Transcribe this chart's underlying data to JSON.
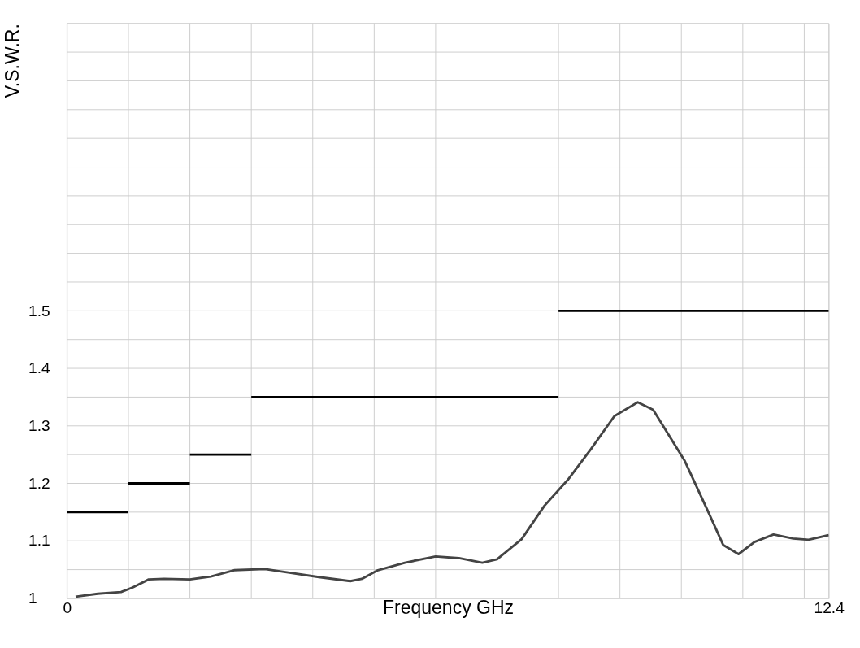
{
  "chart_data": {
    "type": "line",
    "xlabel": "Frequency GHz",
    "ylabel": "V.S.W.R.",
    "xlim": [
      0,
      12.4
    ],
    "ylim": [
      1,
      2
    ],
    "xticks": [
      0,
      {
        "value": 1,
        "label": null
      },
      {
        "value": 2,
        "label": null
      },
      {
        "value": 3,
        "label": null
      },
      {
        "value": 4,
        "label": null
      },
      {
        "value": 5,
        "label": null
      },
      {
        "value": 6,
        "label": null
      },
      {
        "value": 7,
        "label": null
      },
      {
        "value": 8,
        "label": null
      },
      {
        "value": 9,
        "label": null
      },
      {
        "value": 10,
        "label": null
      },
      {
        "value": 11,
        "label": null
      },
      {
        "value": 12,
        "label": null
      },
      12.4
    ],
    "yticks": [
      1,
      {
        "value": 1.05,
        "label": null
      },
      1.1,
      {
        "value": 1.15,
        "label": null
      },
      1.2,
      {
        "value": 1.25,
        "label": null
      },
      1.3,
      {
        "value": 1.35,
        "label": null
      },
      1.4,
      {
        "value": 1.45,
        "label": null
      },
      1.5,
      {
        "value": 1.55,
        "label": null
      },
      {
        "value": 1.6,
        "label": null
      },
      {
        "value": 1.65,
        "label": null
      },
      {
        "value": 1.7,
        "label": null
      },
      {
        "value": 1.75,
        "label": null
      },
      {
        "value": 1.8,
        "label": null
      },
      {
        "value": 1.85,
        "label": null
      },
      {
        "value": 1.9,
        "label": null
      },
      {
        "value": 1.95,
        "label": null
      },
      {
        "value": 2,
        "label": null
      }
    ],
    "grid": true,
    "line_style": "solid",
    "marker": "none",
    "series": [
      {
        "color": "#444444",
        "x": [
          0.14,
          0.5,
          0.88,
          1.07,
          1.33,
          1.58,
          2.0,
          2.34,
          2.72,
          3.22,
          3.6,
          4.1,
          4.61,
          4.8,
          5.06,
          5.5,
          6.0,
          6.38,
          6.76,
          7.0,
          7.4,
          7.77,
          8.15,
          8.53,
          8.91,
          9.29,
          9.54,
          10.05,
          10.43,
          10.68,
          10.93,
          11.19,
          11.5,
          11.82,
          12.07,
          12.4
        ],
        "values": [
          1.003,
          1.008,
          1.011,
          1.019,
          1.033,
          1.034,
          1.033,
          1.038,
          1.049,
          1.051,
          1.045,
          1.037,
          1.03,
          1.034,
          1.049,
          1.062,
          1.073,
          1.07,
          1.062,
          1.068,
          1.103,
          1.161,
          1.206,
          1.26,
          1.317,
          1.341,
          1.328,
          1.24,
          1.152,
          1.093,
          1.077,
          1.098,
          1.111,
          1.104,
          1.102,
          1.11
        ]
      },
      {
        "color": "#000000",
        "x": [
          0,
          1
        ],
        "values": [
          1.15,
          1.15
        ]
      },
      {
        "color": "#000000",
        "x": [
          1,
          2
        ],
        "values": [
          1.2,
          1.2
        ]
      },
      {
        "color": "#000000",
        "x": [
          2,
          3
        ],
        "values": [
          1.25,
          1.25
        ]
      },
      {
        "color": "#000000",
        "x": [
          3,
          8
        ],
        "values": [
          1.35,
          1.35
        ]
      },
      {
        "color": "#000000",
        "x": [
          8,
          12.4
        ],
        "values": [
          1.5,
          1.5
        ]
      }
    ]
  }
}
